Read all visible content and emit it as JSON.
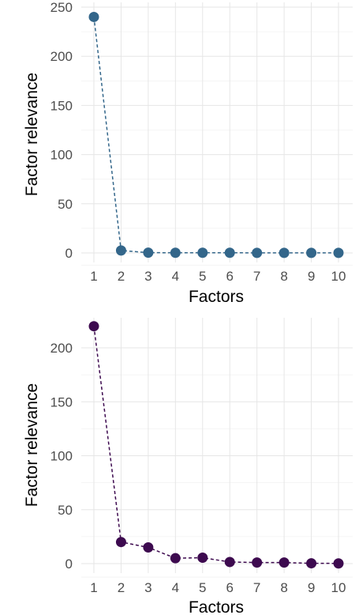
{
  "chart_data": [
    {
      "type": "line",
      "xlabel": "Factors",
      "ylabel": "Factor relevance",
      "x": [
        1,
        2,
        3,
        4,
        5,
        6,
        7,
        8,
        9,
        10
      ],
      "series": [
        {
          "values": [
            240,
            2.5,
            0.3,
            0.2,
            0.2,
            0.2,
            0.1,
            0.1,
            0.1,
            0.1
          ],
          "color": "#33668a"
        }
      ],
      "ylim": [
        0,
        250
      ],
      "yticks": [
        0,
        50,
        100,
        150,
        200,
        250
      ],
      "xticks": [
        1,
        2,
        3,
        4,
        5,
        6,
        7,
        8,
        9,
        10
      ],
      "line_style": "dashed",
      "grid": true
    },
    {
      "type": "line",
      "xlabel": "Factors",
      "ylabel": "Factor relevance",
      "x": [
        1,
        2,
        3,
        4,
        5,
        6,
        7,
        8,
        9,
        10
      ],
      "series": [
        {
          "values": [
            220,
            20,
            15,
            5,
            5.5,
            1.5,
            1,
            1,
            0.3,
            0.2
          ],
          "color": "#3d0a4f"
        }
      ],
      "ylim": [
        0,
        220
      ],
      "yticks": [
        0,
        50,
        100,
        150,
        200
      ],
      "xticks": [
        1,
        2,
        3,
        4,
        5,
        6,
        7,
        8,
        9,
        10
      ],
      "line_style": "dashed",
      "grid": true
    }
  ]
}
